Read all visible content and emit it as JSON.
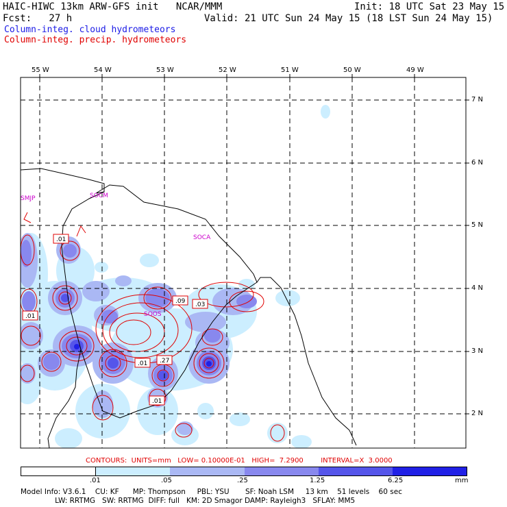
{
  "header": {
    "model_line": "HAIC-HIWC 13km ARW-GFS init   NCAR/MMM",
    "init": "Init: 18 UTC Sat 23 May 15",
    "fcst": "Fcst:   27 h",
    "valid": "Valid: 21 UTC Sun 24 May 15 (18 LST Sun 24 May 15)",
    "field_cloud": "Column-integ. cloud hydrometeors",
    "field_precip": "Column-integ. precip. hydrometeors"
  },
  "colors": {
    "cloud_text": "#1a1ae6",
    "precip_text": "#e00000",
    "coast": "#000000",
    "contour": "#e00000",
    "station": "#cc00cc"
  },
  "axes": {
    "lon_labels": [
      "55 W",
      "54 W",
      "53 W",
      "52 W",
      "51 W",
      "50 W",
      "49 W"
    ],
    "lat_labels": [
      "7 N",
      "6 N",
      "5 N",
      "4 N",
      "3 N",
      "2 N"
    ]
  },
  "stations": [
    "SMJP",
    "SOCM",
    "SOCA",
    "SOOS"
  ],
  "contour_labels": [
    ".01",
    ".01",
    ".09",
    ".03",
    ".27",
    ".01",
    ".01"
  ],
  "contour_info": "CONTOURS:  UNITS=mm   LOW= 0.10000E-01   HIGH=  7.2900        INTERVAL=X  3.0000",
  "colorbar": {
    "colors": [
      "#ffffff",
      "#cceeff",
      "#aab8f4",
      "#8888ee",
      "#5555ea",
      "#2020e6",
      "#0000dd"
    ],
    "labels": [
      ".01",
      ".05",
      ".25",
      "1.25",
      "6.25",
      "mm"
    ]
  },
  "footer": {
    "line1": "Model Info: V3.6.1    CU: KF      MP: Thompson     PBL: YSU       SF: Noah LSM     13 km    51 levels    60 sec",
    "line2": "               LW: RRTMG   SW: RRTMG  DIFF: full   KM: 2D Smagor DAMP: Rayleigh3   SFLAY: MM5"
  }
}
